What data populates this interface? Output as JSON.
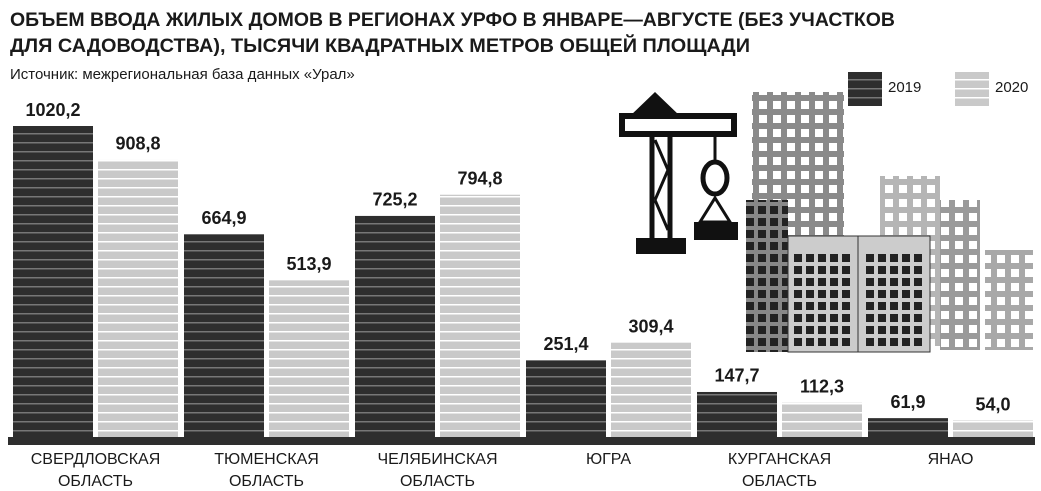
{
  "chart_data": {
    "type": "bar",
    "title": [
      "ОБЪЕМ ВВОДА ЖИЛЫХ ДОМОВ В РЕГИОНАХ УРФО В ЯНВАРЕ—АВГУСТЕ (БЕЗ УЧАСТКОВ",
      "ДЛЯ САДОВОДСТВА), ТЫСЯЧИ КВАДРАТНЫХ МЕТРОВ ОБЩЕЙ ПЛОЩАДИ"
    ],
    "subtitle": "Источник: межрегиональная база данных «Урал»",
    "categories": [
      "СВЕРДЛОВСКАЯ ОБЛАСТЬ",
      "ТЮМЕНСКАЯ ОБЛАСТЬ",
      "ЧЕЛЯБИНСКАЯ ОБЛАСТЬ",
      "ЮГРА",
      "КУРГАНСКАЯ ОБЛАСТЬ",
      "ЯНАО"
    ],
    "series": [
      {
        "name": "2019",
        "color": "#2e2e2e",
        "values": [
          1020.2,
          664.9,
          725.2,
          251.4,
          147.7,
          61.9
        ],
        "value_labels": [
          "1020,2",
          "664,9",
          "725,2",
          "251,4",
          "147,7",
          "61,9"
        ]
      },
      {
        "name": "2020",
        "color": "#c9c9c9",
        "values": [
          908.8,
          513.9,
          794.8,
          309.4,
          112.3,
          54.0
        ],
        "value_labels": [
          "908,8",
          "513,9",
          "794,8",
          "309,4",
          "112,3",
          "54,0"
        ]
      }
    ],
    "legend": "top-right"
  }
}
